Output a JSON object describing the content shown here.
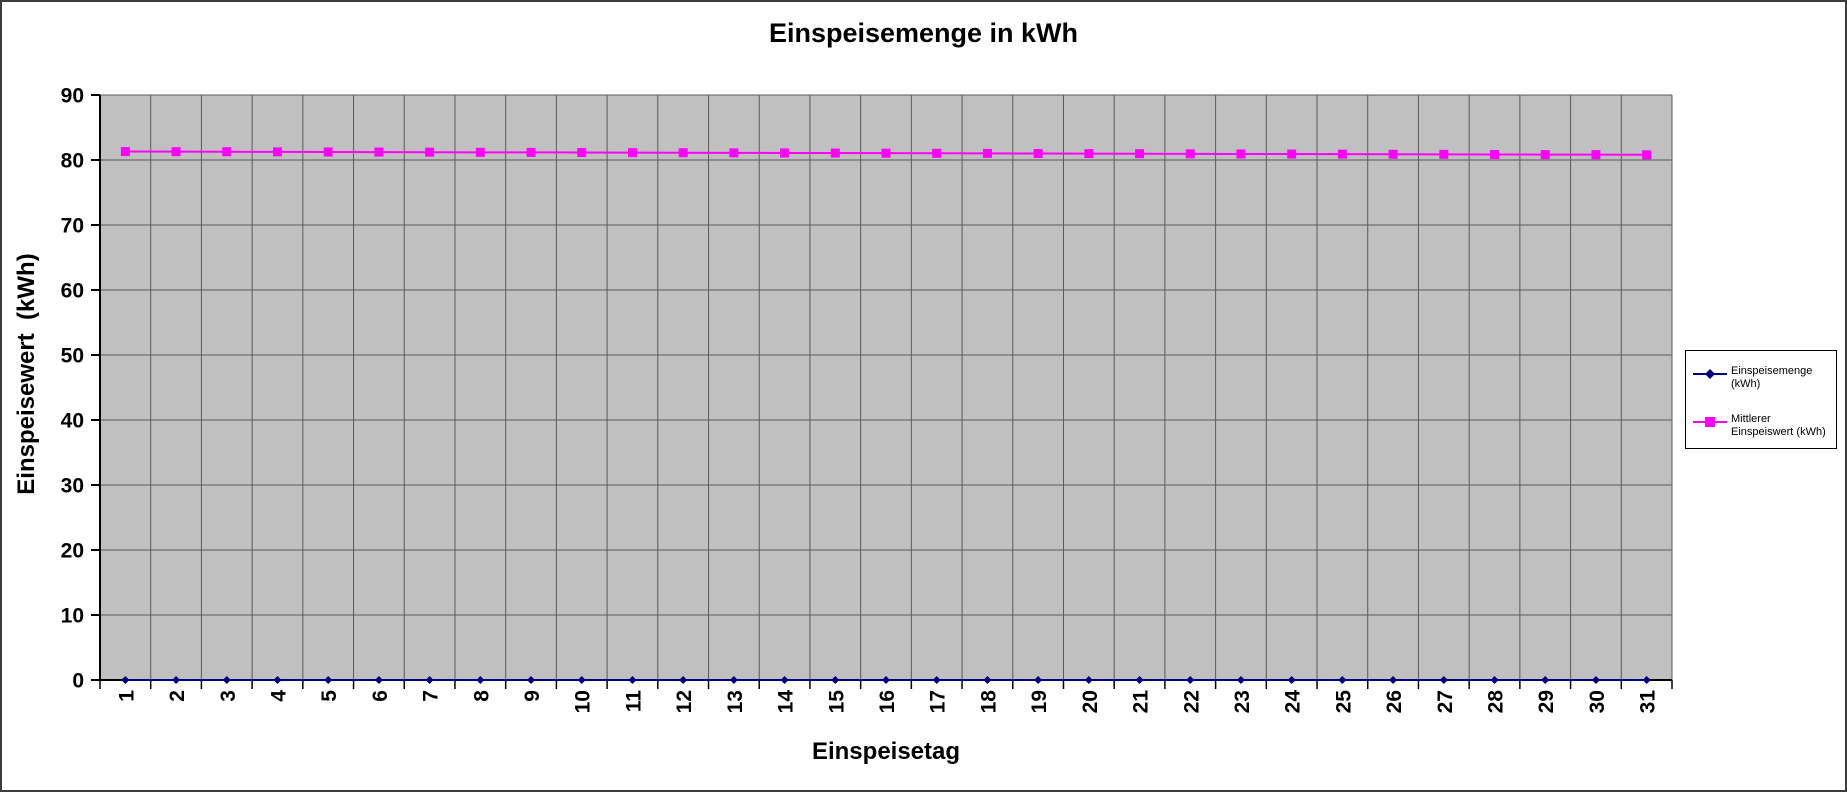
{
  "title": "Einspeisemenge in kWh",
  "colors": {
    "background": "#FFFFFF",
    "outer_border": "#3C3C3C",
    "plot_bg": "#C0C0C0",
    "gridline": "#5A5A5A",
    "axis": "#000000",
    "legend_bg": "#FFFFFF",
    "legend_border": "#000000",
    "series_blue": "#000080",
    "series_magenta": "#FF00FF"
  },
  "legend": {
    "position": "right",
    "items": [
      {
        "label": "Einspeisemenge (kWh)",
        "marker": "diamond",
        "color": "#000080"
      },
      {
        "label": "Mittlerer Einspeiswert (kWh)",
        "marker": "square",
        "color": "#FF00FF"
      }
    ]
  },
  "chart_data": {
    "type": "line",
    "title": "Einspeisemenge in kWh",
    "xlabel": "Einspeisetag",
    "ylabel": "Einspeisewert  (kWh)",
    "categories": [
      "1",
      "2",
      "3",
      "4",
      "5",
      "6",
      "7",
      "8",
      "9",
      "10",
      "11",
      "12",
      "13",
      "14",
      "15",
      "16",
      "17",
      "18",
      "19",
      "20",
      "21",
      "22",
      "23",
      "24",
      "25",
      "26",
      "27",
      "28",
      "29",
      "30",
      "31"
    ],
    "yticks": [
      0,
      10,
      20,
      30,
      40,
      50,
      60,
      70,
      80,
      90
    ],
    "ylim": [
      0,
      90
    ],
    "grid": "both",
    "legend_position": "right",
    "series": [
      {
        "name": "Einspeisemenge (kWh)",
        "color": "#000080",
        "marker": "diamond",
        "values": [
          0,
          0,
          0,
          0,
          0,
          0,
          0,
          0,
          0,
          0,
          0,
          0,
          0,
          0,
          0,
          0,
          0,
          0,
          0,
          0,
          0,
          0,
          0,
          0,
          0,
          0,
          0,
          0,
          0,
          0,
          0
        ]
      },
      {
        "name": "Mittlerer Einspeiswert (kWh)",
        "color": "#FF00FF",
        "marker": "square",
        "values": [
          81.3,
          81.28,
          81.27,
          81.25,
          81.23,
          81.22,
          81.2,
          81.18,
          81.17,
          81.15,
          81.13,
          81.12,
          81.1,
          81.08,
          81.07,
          81.05,
          81.03,
          81.02,
          81.0,
          80.98,
          80.97,
          80.95,
          80.93,
          80.92,
          80.9,
          80.88,
          80.87,
          80.85,
          80.83,
          80.82,
          80.8
        ]
      }
    ]
  }
}
